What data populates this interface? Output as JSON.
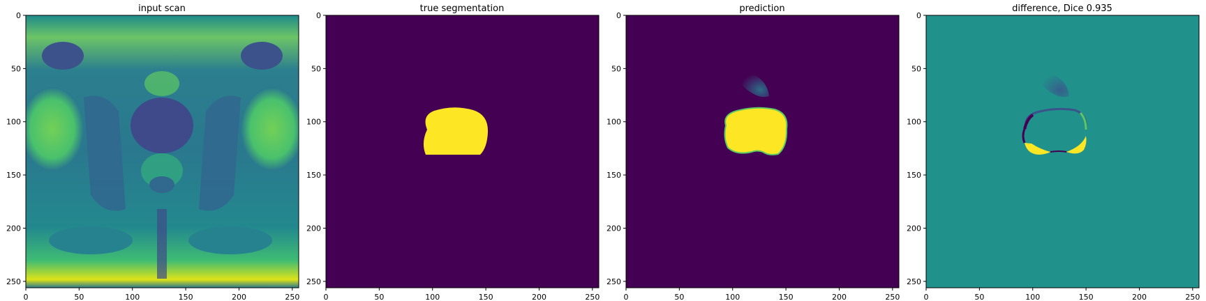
{
  "figure": {
    "panels": [
      {
        "id": "input",
        "title": "input scan",
        "x_ticks": [
          "0",
          "50",
          "100",
          "150",
          "200",
          "250"
        ],
        "y_ticks": [
          "0",
          "50",
          "100",
          "150",
          "200",
          "250"
        ],
        "image": "grayscale pelvic MRI slice rendered with viridis colormap"
      },
      {
        "id": "truth",
        "title": "true segmentation",
        "x_ticks": [
          "0",
          "50",
          "100",
          "150",
          "200",
          "250"
        ],
        "y_ticks": [
          "0",
          "50",
          "100",
          "150",
          "200",
          "250"
        ],
        "image": "binary mask (purple background, yellow region)"
      },
      {
        "id": "pred",
        "title": "prediction",
        "x_ticks": [
          "0",
          "50",
          "100",
          "150",
          "200",
          "250"
        ],
        "y_ticks": [
          "0",
          "50",
          "100",
          "150",
          "200",
          "250"
        ],
        "image": "predicted mask with faint secondary blob"
      },
      {
        "id": "diff",
        "title": "difference, Dice 0.935",
        "x_ticks": [
          "0",
          "50",
          "100",
          "150",
          "200",
          "250"
        ],
        "y_ticks": [
          "0",
          "50",
          "100",
          "150",
          "200",
          "250"
        ],
        "image": "difference map (teal background, purple/yellow edges)"
      }
    ],
    "colors": {
      "viridis_low": "#440154",
      "viridis_mid": "#21918c",
      "viridis_high": "#fde725",
      "viridis_q1": "#3b528b",
      "viridis_q3": "#5ec962"
    }
  }
}
